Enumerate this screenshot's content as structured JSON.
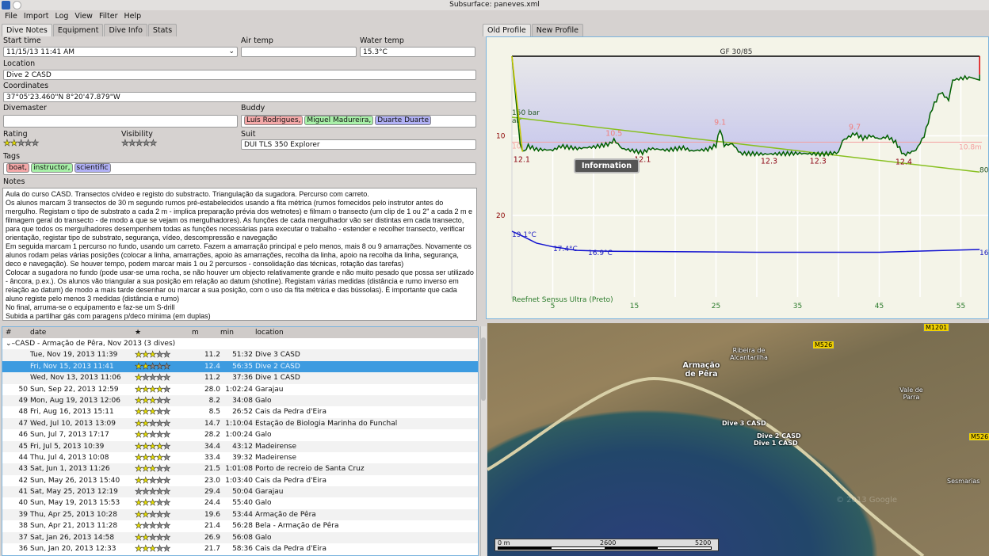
{
  "window": {
    "title": "Subsurface: paneves.xml"
  },
  "menu": [
    "File",
    "Import",
    "Log",
    "View",
    "Filter",
    "Help"
  ],
  "left_tabs": [
    "Dive Notes",
    "Equipment",
    "Dive Info",
    "Stats"
  ],
  "form": {
    "start_time_label": "Start time",
    "start_time": "11/15/13 11:41 AM",
    "air_temp_label": "Air temp",
    "air_temp": "",
    "water_temp_label": "Water temp",
    "water_temp": "15.3°C",
    "location_label": "Location",
    "location": "Dive 2 CASD",
    "coordinates_label": "Coordinates",
    "coordinates": "37°05'23.460\"N 8°20'47.879\"W",
    "divemaster_label": "Divemaster",
    "divemaster": "",
    "buddy_label": "Buddy",
    "buddies": [
      {
        "name": "Luís Rodrigues,",
        "color": "#f4a8a8"
      },
      {
        "name": "Miguel Madureira,",
        "color": "#a8f0a8"
      },
      {
        "name": "Duarte Duarte",
        "color": "#b0b0f4"
      }
    ],
    "rating_label": "Rating",
    "rating": 2,
    "visibility_label": "Visibility",
    "visibility": 0,
    "suit_label": "Suit",
    "suit": "DUI TLS 350 Explorer",
    "tags_label": "Tags",
    "tags": [
      {
        "name": "boat,",
        "color": "#f4a8a8"
      },
      {
        "name": "instructor,",
        "color": "#a8f0a8"
      },
      {
        "name": "scientific",
        "color": "#b0b0f4"
      }
    ],
    "notes_label": "Notes",
    "notes": "Aula do curso CASD. Transectos c/video e registo do substracto. Triangulação da sugadora. Percurso com carreto.\nOs alunos marcam 3 transectos de 30 m segundo rumos pré-estabelecidos usando a fita métrica (rumos fornecidos pelo instrutor antes do mergulho. Registam o tipo de substrato a cada 2 m - implica preparação prévia dos wetnotes) e filmam o transecto (um clip de 1 ou 2\" a cada 2 m e filmagem geral do transecto - de modo a que se vejam os mergulhadores). As funções de cada mergulhador vão ser distintas em cada transecto, para que todos os mergulhadores desempenhem todas as funções necessárias para executar o trabalho - estender e recolher transecto, verificar orientação, registar tipo de substrato, segurança, vídeo, descompressão e navegação\nEm seguida marcam 1 percurso no fundo, usando um carreto. Fazem a amarração principal e pelo menos, mais 8 ou 9 amarrações. Novamente os alunos rodam pelas várias posições (colocar a linha, amarrações, apoio às amarrações, recolha da linha, apoio na recolha da linha, segurança, deco e navegação). Se houver tempo, podem marcar mais 1 ou 2 percursos - consolidação das técnicas, rotação das tarefas)\nColocar a sugadora no fundo (pode usar-se uma rocha, se não houver um objecto relativamente grande e não muito pesado que possa ser utilizado - âncora, p.ex.). Os alunos vão triangular a sua posição em relação ao datum (shotline). Registam várias medidas (distância e rumo inverso em relação ao datum) de modo a mais tarde desenhar ou marcar a sua posição, com o uso da fita métrica e das bússolas). É importante que cada aluno registe pelo menos 3 medidas (distância e rumo)\nNo final, arruma-se o equipamento e faz-se um S-drill\nSubida a partilhar gás com paragens p/deco mínima (em duplas)"
  },
  "dive_list": {
    "columns": [
      "#",
      "date",
      "★",
      "m",
      "min",
      "location"
    ],
    "trip": "CASD - Armação de Pêra, Nov 2013 (3 dives)",
    "rows": [
      {
        "num": "",
        "date": "Tue, Nov 19, 2013 11:39",
        "rating": 3,
        "depth": "11.2",
        "duration": "51:32",
        "location": "Dive 3 CASD",
        "child": true
      },
      {
        "num": "",
        "date": "Fri, Nov 15, 2013 11:41",
        "rating": 2,
        "depth": "12.4",
        "duration": "56:35",
        "location": "Dive 2 CASD",
        "child": true,
        "selected": true
      },
      {
        "num": "",
        "date": "Wed, Nov 13, 2013 11:06",
        "rating": 1,
        "depth": "11.2",
        "duration": "37:36",
        "location": "Dive 1 CASD",
        "child": true
      },
      {
        "num": "50",
        "date": "Sun, Sep 22, 2013 12:59",
        "rating": 4,
        "depth": "28.0",
        "duration": "1:02:24",
        "location": "Garajau"
      },
      {
        "num": "49",
        "date": "Mon, Aug 19, 2013 12:06",
        "rating": 3,
        "depth": "8.2",
        "duration": "34:08",
        "location": "Galo"
      },
      {
        "num": "48",
        "date": "Fri, Aug 16, 2013 15:11",
        "rating": 3,
        "depth": "8.5",
        "duration": "26:52",
        "location": "Cais da Pedra d'Eira"
      },
      {
        "num": "47",
        "date": "Wed, Jul 10, 2013 13:09",
        "rating": 2,
        "depth": "14.7",
        "duration": "1:10:04",
        "location": "Estação de Biologia Marinha do Funchal"
      },
      {
        "num": "46",
        "date": "Sun, Jul 7, 2013 17:17",
        "rating": 2,
        "depth": "28.2",
        "duration": "1:00:24",
        "location": "Galo"
      },
      {
        "num": "45",
        "date": "Fri, Jul 5, 2013 10:39",
        "rating": 4,
        "depth": "34.4",
        "duration": "43:12",
        "location": "Madeirense"
      },
      {
        "num": "44",
        "date": "Thu, Jul 4, 2013 10:08",
        "rating": 4,
        "depth": "33.4",
        "duration": "39:32",
        "location": "Madeirense"
      },
      {
        "num": "43",
        "date": "Sat, Jun 1, 2013 11:26",
        "rating": 3,
        "depth": "21.5",
        "duration": "1:01:08",
        "location": "Porto de recreio de Santa Cruz"
      },
      {
        "num": "42",
        "date": "Sun, May 26, 2013 15:40",
        "rating": 2,
        "depth": "23.0",
        "duration": "1:03:40",
        "location": "Cais da Pedra d'Eira"
      },
      {
        "num": "41",
        "date": "Sat, May 25, 2013 12:19",
        "rating": 0,
        "depth": "29.4",
        "duration": "50:04",
        "location": "Garajau"
      },
      {
        "num": "40",
        "date": "Sun, May 19, 2013 15:53",
        "rating": 3,
        "depth": "24.4",
        "duration": "55:40",
        "location": "Galo"
      },
      {
        "num": "39",
        "date": "Thu, Apr 25, 2013 10:28",
        "rating": 2,
        "depth": "19.6",
        "duration": "53:44",
        "location": "Armação de Pêra"
      },
      {
        "num": "38",
        "date": "Sun, Apr 21, 2013 11:28",
        "rating": 1,
        "depth": "21.4",
        "duration": "56:28",
        "location": "Bela - Armação de Pêra"
      },
      {
        "num": "37",
        "date": "Sat, Jan 26, 2013 14:58",
        "rating": 2,
        "depth": "26.9",
        "duration": "56:08",
        "location": "Galo"
      },
      {
        "num": "36",
        "date": "Sun, Jan 20, 2013 12:33",
        "rating": 3,
        "depth": "21.7",
        "duration": "58:36",
        "location": "Cais da Pedra d'Eira"
      }
    ]
  },
  "profile_tabs": [
    "Old Profile",
    "New Profile"
  ],
  "profile": {
    "gf": "GF 30/85",
    "gas_start": "150 bar",
    "gas": "air",
    "gas_end": "80",
    "computer": "Reefnet Sensus Ultra (Preto)",
    "info_button": "Information",
    "mean_depth": "10.8m",
    "mean_depth_left": "10",
    "depth_ticks": [
      "10",
      "20"
    ],
    "time_ticks": [
      "5",
      "15",
      "25",
      "35",
      "45",
      "55"
    ],
    "depth_labels": [
      {
        "t": 1.2,
        "d": 12.1,
        "text": "12.1",
        "type": "min"
      },
      {
        "t": 12.5,
        "d": 10.5,
        "text": "10.5",
        "type": "max"
      },
      {
        "t": 16,
        "d": 12.1,
        "text": "12.1",
        "type": "min"
      },
      {
        "t": 25.5,
        "d": 9.1,
        "text": "9.1",
        "type": "max"
      },
      {
        "t": 31.5,
        "d": 12.3,
        "text": "12.3",
        "type": "min"
      },
      {
        "t": 37.5,
        "d": 12.3,
        "text": "12.3",
        "type": "min"
      },
      {
        "t": 42,
        "d": 9.7,
        "text": "9.7",
        "type": "max"
      },
      {
        "t": 48,
        "d": 12.4,
        "text": "12.4",
        "type": "min"
      }
    ],
    "depth_samples": [
      [
        0,
        0
      ],
      [
        1,
        11
      ],
      [
        1.3,
        12.1
      ],
      [
        2,
        11.3
      ],
      [
        3,
        11.7
      ],
      [
        5,
        11.8
      ],
      [
        6,
        11.3
      ],
      [
        8,
        11.6
      ],
      [
        10,
        11.4
      ],
      [
        12,
        11.0
      ],
      [
        12.5,
        10.5
      ],
      [
        13.5,
        11.6
      ],
      [
        16,
        12.1
      ],
      [
        17,
        11.6
      ],
      [
        19,
        11.8
      ],
      [
        21,
        11.5
      ],
      [
        22,
        11.9
      ],
      [
        24,
        11.7
      ],
      [
        25,
        11.2
      ],
      [
        25.5,
        9.1
      ],
      [
        26,
        11.2
      ],
      [
        27,
        11.0
      ],
      [
        28,
        12.2
      ],
      [
        31,
        12.3
      ],
      [
        35,
        12.2
      ],
      [
        38,
        12.3
      ],
      [
        40,
        12.1
      ],
      [
        40.5,
        10.6
      ],
      [
        42,
        9.7
      ],
      [
        43,
        10.3
      ],
      [
        44,
        10.0
      ],
      [
        45,
        10.4
      ],
      [
        46,
        10.1
      ],
      [
        47,
        10.8
      ],
      [
        48,
        12.4
      ],
      [
        49.5,
        11.8
      ],
      [
        50.5,
        10.0
      ],
      [
        51.5,
        6.5
      ],
      [
        52.5,
        4.5
      ],
      [
        53.5,
        5.5
      ],
      [
        54,
        3
      ],
      [
        55,
        2.8
      ],
      [
        56,
        2.6
      ],
      [
        57.3,
        3.0
      ],
      [
        57.3,
        2.3
      ]
    ],
    "pressure": [
      [
        0,
        150
      ],
      [
        57.3,
        80
      ]
    ],
    "temperature_labels": [
      "19.1°C",
      "17.4°C",
      "16.9°C",
      "16"
    ],
    "temperature_samples": [
      [
        0,
        19.1
      ],
      [
        1,
        18.7
      ],
      [
        3,
        17.8
      ],
      [
        5,
        17.4
      ],
      [
        8,
        17.0
      ],
      [
        12,
        16.9
      ],
      [
        30,
        16.8
      ],
      [
        45,
        16.8
      ],
      [
        57.3,
        17.1
      ]
    ],
    "colors": {
      "depth": "#005f00",
      "pressure": "#88c020",
      "temperature": "#1010d0",
      "ceiling": "#f4a0a0"
    }
  },
  "map": {
    "labels": [
      "Armação de Pêra",
      "Ribeira de Alcantarilha",
      "Vale de Parra",
      "Sesmarias"
    ],
    "roads": [
      "M526",
      "M526",
      "M1201"
    ],
    "markers": [
      "Dive 3 CASD",
      "Dive 2 CASD",
      "Dive 1 CASD"
    ],
    "scale": [
      "0 m",
      "2600",
      "5200"
    ],
    "copyright": "© 2013 Google"
  }
}
